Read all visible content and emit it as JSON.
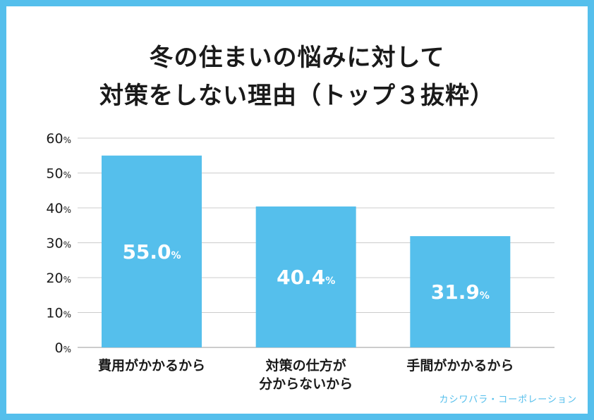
{
  "title_lines": [
    "冬の住まいの悩みに対して",
    "対策をしない理由（トップ３抜粋）"
  ],
  "credit": "カシワバラ・コーポレーション",
  "colors": {
    "bar": "#55bfec",
    "frame": "#55bfec",
    "grid": "#cccccc",
    "text": "#1a1a1a",
    "bar_label": "#ffffff"
  },
  "chart_data": {
    "type": "bar",
    "title": "冬の住まいの悩みに対して 対策をしない理由（トップ３抜粋）",
    "categories": [
      [
        "費用がかかるから"
      ],
      [
        "対策の仕方が",
        "分からないから"
      ],
      [
        "手間がかかるから"
      ]
    ],
    "values": [
      55.0,
      40.4,
      31.9
    ],
    "value_labels": [
      "55.0",
      "40.4",
      "31.9"
    ],
    "value_unit": "%",
    "ylim": [
      0,
      60
    ],
    "yticks": [
      {
        "value": 0,
        "num": "0",
        "unit": "%"
      },
      {
        "value": 10,
        "num": "10",
        "unit": "%"
      },
      {
        "value": 20,
        "num": "20",
        "unit": "%"
      },
      {
        "value": 30,
        "num": "30",
        "unit": "%"
      },
      {
        "value": 40,
        "num": "40",
        "unit": "%"
      },
      {
        "value": 50,
        "num": "50",
        "unit": "%"
      },
      {
        "value": 60,
        "num": "60",
        "unit": "%"
      }
    ],
    "xlabel": "",
    "ylabel": "",
    "grid": true,
    "legend": "none"
  }
}
